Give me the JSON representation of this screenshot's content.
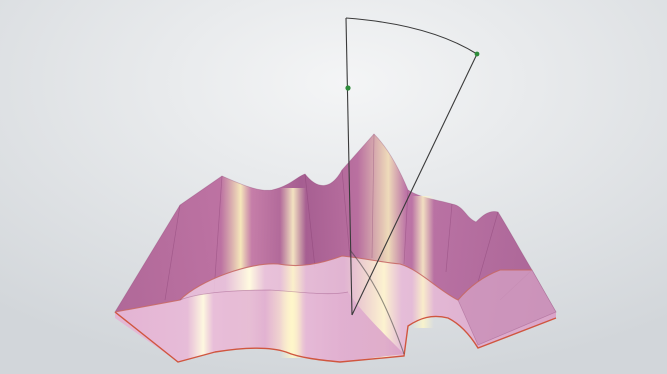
{
  "scene": {
    "background_color": "#d2d6da",
    "background_highlight": "#f4f5f6",
    "surface_color": "#b64f90",
    "surface_light": "#e2b5d2",
    "surface_edge": "#d0563f",
    "highlight_color": "#fff8c8",
    "sector_line_color": "#3a3a3a",
    "handle_color": "#2e8b3a",
    "view_mode": "shaded-transparent"
  }
}
